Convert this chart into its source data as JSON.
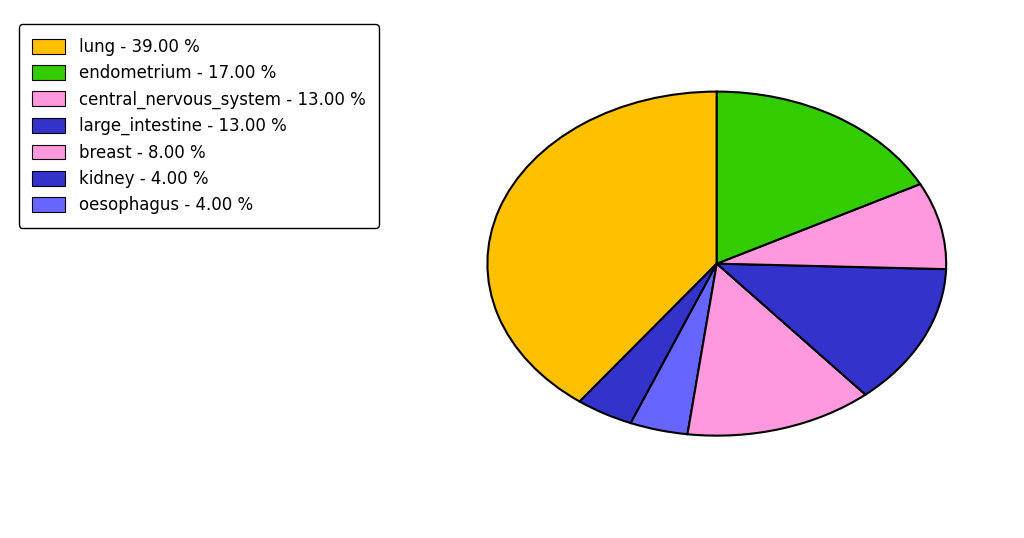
{
  "legend_labels": [
    "lung - 39.00 %",
    "endometrium - 17.00 %",
    "central_nervous_system - 13.00 %",
    "large_intestine - 13.00 %",
    "breast - 8.00 %",
    "kidney - 4.00 %",
    "oesophagus - 4.00 %"
  ],
  "legend_colors": [
    "#FFC000",
    "#33CC00",
    "#FF99DD",
    "#3333CC",
    "#FF99DD",
    "#3333CC",
    "#6666FF"
  ],
  "plot_order_labels": [
    "lung",
    "kidney",
    "oesophagus",
    "central_nervous_system",
    "large_intestine",
    "breast",
    "endometrium"
  ],
  "plot_values": [
    39,
    4,
    4,
    13,
    13,
    8,
    17
  ],
  "plot_colors": [
    "#FFC000",
    "#3333CC",
    "#6666FF",
    "#FF99DD",
    "#3333CC",
    "#FF99DD",
    "#33CC00"
  ],
  "background_color": "#ffffff",
  "startangle": 90,
  "figsize": [
    10.24,
    5.38
  ],
  "dpi": 100,
  "legend_fontsize": 12,
  "aspect_ratio": 0.75
}
